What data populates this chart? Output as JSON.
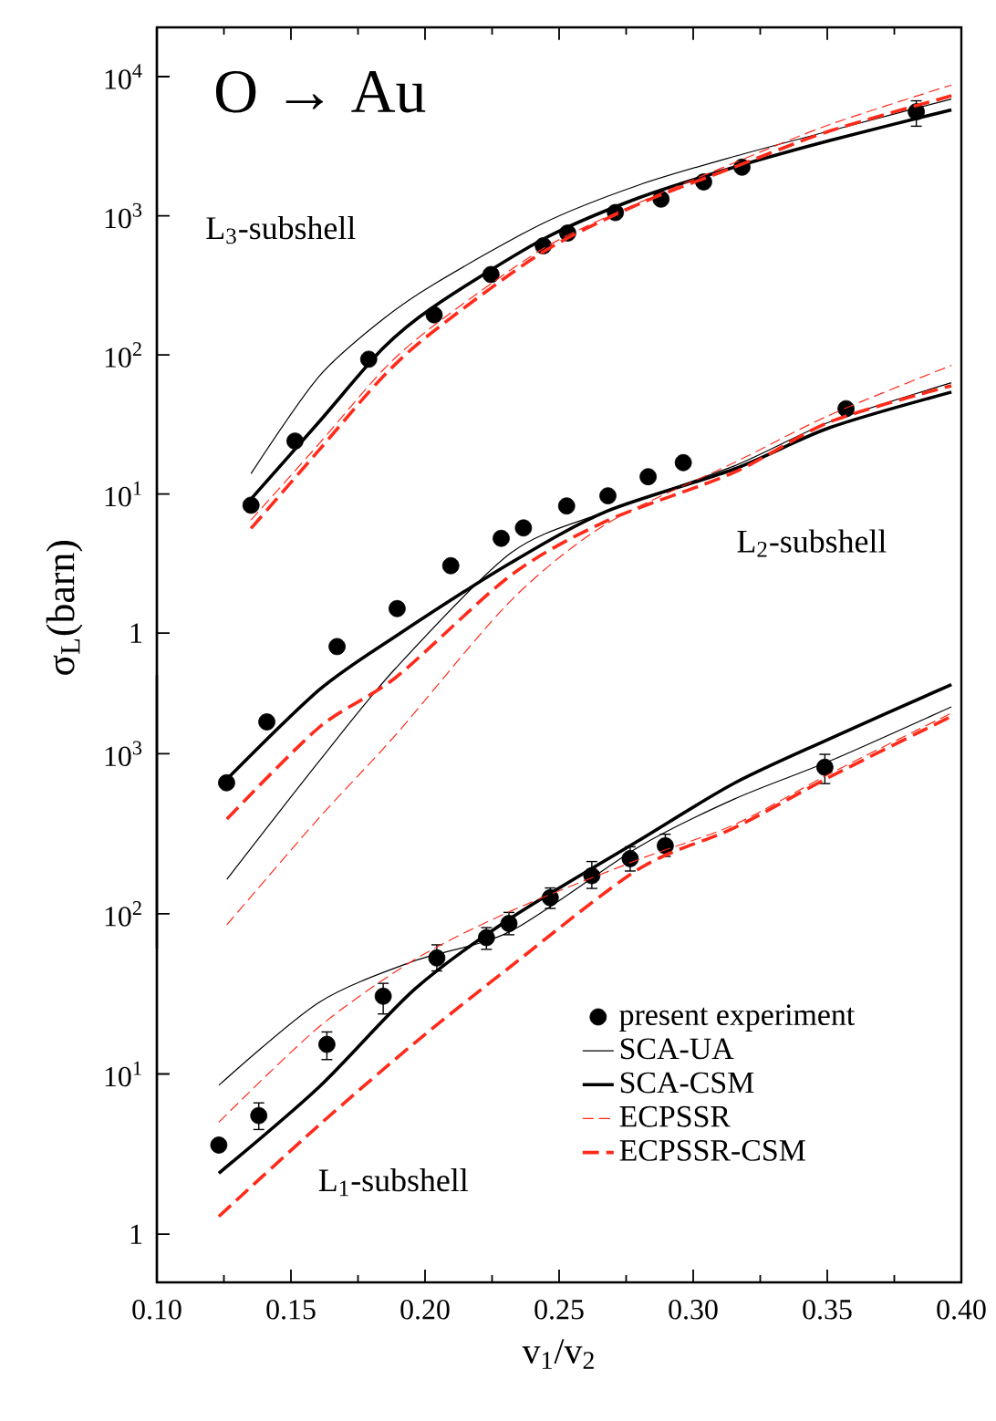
{
  "chart_data": [
    {
      "type": "line",
      "ylabel": "σ$_{L}$(barn)",
      "annotations": [
        "O → Au",
        "L$_{3}$-subshell",
        "L$_{2}$-subshell"
      ],
      "log": "y",
      "xlim": [
        0.1,
        0.4
      ],
      "xticks": [
        0.1,
        0.15,
        0.2,
        0.25,
        0.3,
        0.35,
        0.4
      ],
      "ylim": [
        0.0054,
        22600
      ],
      "yticks": [
        1,
        {
          "value": 10,
          "label": "10$^{1}$"
        },
        {
          "value": 100,
          "label": "10$^{2}$"
        },
        {
          "value": 1000,
          "label": "10$^{3}$"
        },
        {
          "value": 10000,
          "label": "10$^{4}$"
        }
      ],
      "tick_labels": "y",
      "series": [
        {
          "type": "scatter",
          "marker": "circle",
          "color": "#000000",
          "x": [
            0.1351,
            0.1515,
            0.179,
            0.2034,
            0.2246,
            0.2441,
            0.2532,
            0.271,
            0.288,
            0.3039,
            0.3182,
            0.3832
          ],
          "values": [
            8.3,
            24,
            93,
            194,
            378,
            608,
            751,
            1054,
            1316,
            1750,
            2233,
            5585
          ],
          "errors": [
            null,
            null,
            null,
            null,
            null,
            null,
            null,
            null,
            null,
            null,
            null,
            [
              4400,
              6700
            ]
          ]
        },
        {
          "type": "line",
          "marker": "none",
          "line_style": "solid",
          "color": "#000000",
          "x": [
            0.1351,
            0.1605,
            0.1844,
            0.2034,
            0.2439,
            0.2796,
            0.3153,
            0.351,
            0.3963
          ],
          "values": [
            14,
            70,
            181,
            323,
            881,
            1660,
            2667,
            4070,
            6900
          ]
        },
        {
          "type": "line",
          "marker": "none",
          "line_style": "solid",
          "color": "#000000",
          "x": [
            0.1351,
            0.1605,
            0.1844,
            0.2034,
            0.2439,
            0.2796,
            0.3153,
            0.351,
            0.3963
          ],
          "values": [
            9.2,
            33,
            112,
            223,
            676,
            1343,
            2233,
            3476,
            5770
          ]
        },
        {
          "type": "line",
          "marker": "none",
          "line_style": "dashed",
          "color": "#ff2a1a",
          "x": [
            0.1351,
            0.1605,
            0.1844,
            0.2034,
            0.2439,
            0.2796,
            0.3153,
            0.351,
            0.3963
          ],
          "values": [
            6.5,
            23,
            78,
            163,
            578,
            1236,
            2400,
            4530,
            8700
          ]
        },
        {
          "type": "line",
          "marker": "none",
          "line_style": "dashed",
          "color": "#ff2a1a",
          "x": [
            0.1351,
            0.1605,
            0.1844,
            0.2034,
            0.2439,
            0.2796,
            0.3153,
            0.351,
            0.3963
          ],
          "values": [
            5.65,
            20.7,
            70,
            149,
            547,
            1210,
            2233,
            4070,
            7280
          ]
        },
        {
          "type": "scatter",
          "marker": "circle",
          "color": "#000000",
          "x": [
            0.126,
            0.141,
            0.1672,
            0.1896,
            0.2096,
            0.2284,
            0.2367,
            0.2528,
            0.2682,
            0.2832,
            0.2963,
            0.357
          ],
          "values": [
            0.084,
            0.23,
            0.8,
            1.5,
            3.05,
            4.8,
            5.7,
            8.2,
            9.7,
            13.3,
            16.8,
            41
          ]
        },
        {
          "type": "line",
          "marker": "none",
          "line_style": "solid",
          "color": "#000000",
          "x": [
            0.1261,
            0.1605,
            0.1891,
            0.232,
            0.2677,
            0.3153,
            0.351,
            0.3963
          ],
          "values": [
            0.017,
            0.12,
            0.56,
            3.77,
            7.5,
            15.9,
            33,
            63
          ]
        },
        {
          "type": "line",
          "marker": "none",
          "line_style": "solid",
          "color": "#000000",
          "x": [
            0.1261,
            0.1605,
            0.1891,
            0.232,
            0.2677,
            0.3153,
            0.351,
            0.3963
          ],
          "values": [
            0.089,
            0.39,
            0.95,
            3.2,
            7.5,
            15.1,
            30,
            54
          ]
        },
        {
          "type": "line",
          "marker": "none",
          "line_style": "dashed",
          "color": "#ff2a1a",
          "x": [
            0.1261,
            0.1605,
            0.1891,
            0.232,
            0.2677,
            0.3153,
            0.351,
            0.3963
          ],
          "values": [
            0.008,
            0.047,
            0.186,
            1.71,
            6.1,
            16.8,
            37,
            84
          ]
        },
        {
          "type": "line",
          "marker": "none",
          "line_style": "dashed",
          "color": "#ff2a1a",
          "x": [
            0.1261,
            0.1605,
            0.1891,
            0.232,
            0.2677,
            0.3153,
            0.351,
            0.3963
          ],
          "values": [
            0.046,
            0.21,
            0.48,
            2.6,
            6.4,
            14.3,
            33,
            60
          ]
        }
      ]
    },
    {
      "type": "line",
      "xlabel": "v$_{1}$/v$_{2}$",
      "annotations": [
        "L$_{1}$-subshell"
      ],
      "log": "y",
      "legend": "bottom right",
      "xlim": [
        0.1,
        0.4
      ],
      "xticks": [
        {
          "value": 0.1,
          "label": "0.10"
        },
        0.15,
        {
          "value": 0.2,
          "label": "0.20"
        },
        0.25,
        {
          "value": 0.3,
          "label": "0.30"
        },
        0.35,
        {
          "value": 0.4,
          "label": "0.40"
        }
      ],
      "ylim": [
        0.5,
        3100
      ],
      "yticks": [
        1,
        {
          "value": 10,
          "label": "10$^{1}$"
        },
        {
          "value": 100,
          "label": "10$^{2}$"
        },
        {
          "value": 1000,
          "label": "10$^{3}$"
        }
      ],
      "series": [
        {
          "name": "present experiment",
          "type": "scatter",
          "marker": "circle",
          "color": "#000000",
          "x": [
            0.1231,
            0.138,
            0.1634,
            0.1844,
            0.2044,
            0.2229,
            0.2313,
            0.2467,
            0.2622,
            0.2765,
            0.2896,
            0.3491
          ],
          "values": [
            3.6,
            5.5,
            15.3,
            30.6,
            53,
            71,
            87,
            126,
            173,
            221,
            266,
            822
          ],
          "errors": [
            null,
            [
              4.5,
              6.6
            ],
            [
              12.3,
              18.3
            ],
            [
              23.7,
              36.8
            ],
            [
              44,
              64
            ],
            [
              60,
              82
            ],
            [
              74,
              102
            ],
            [
              108,
              145
            ],
            [
              144,
              212
            ],
            [
              185,
              262
            ],
            [
              228,
              314
            ],
            [
              650,
              990
            ]
          ]
        },
        {
          "name": "SCA-UA",
          "type": "line",
          "marker": "none",
          "line_style": "solid",
          "color": "#000000",
          "x": [
            0.1231,
            0.1605,
            0.1963,
            0.232,
            0.2796,
            0.3153,
            0.351,
            0.3963
          ],
          "values": [
            8.5,
            28,
            51,
            78,
            261,
            520,
            900,
            1960
          ]
        },
        {
          "name": "SCA-CSM",
          "type": "line",
          "marker": "none",
          "line_style": "solid",
          "color": "#000000",
          "x": [
            0.1231,
            0.1605,
            0.1963,
            0.232,
            0.2796,
            0.3153,
            0.351,
            0.3963
          ],
          "values": [
            2.4,
            8.3,
            34,
            94,
            286,
            653,
            1240,
            2700
          ]
        },
        {
          "name": "ECPSSR",
          "type": "line",
          "marker": "none",
          "line_style": "dashed",
          "color": "#ff2a1a",
          "x": [
            0.1231,
            0.1605,
            0.1963,
            0.232,
            0.2796,
            0.3153,
            0.351,
            0.3963
          ],
          "values": [
            5,
            19.7,
            52,
            104,
            218,
            360,
            750,
            1790
          ]
        },
        {
          "name": "ECPSSR-CSM",
          "type": "line",
          "marker": "none",
          "line_style": "dashed",
          "color": "#ff2a1a",
          "x": [
            0.1231,
            0.1605,
            0.1963,
            0.232,
            0.2796,
            0.3153,
            0.351,
            0.3963
          ],
          "values": [
            1.29,
            4.8,
            15.7,
            47,
            190,
            344,
            716,
            1710
          ]
        }
      ]
    }
  ]
}
